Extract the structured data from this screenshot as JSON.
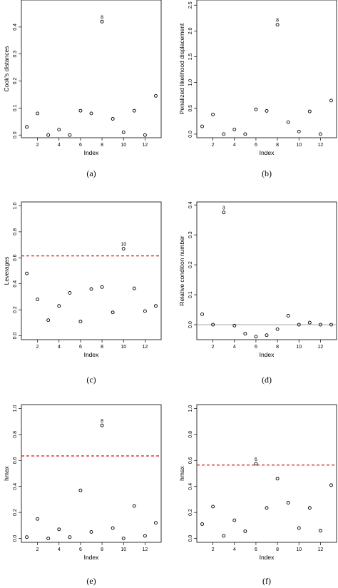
{
  "chart_data": [
    {
      "type": "scatter",
      "caption": "(a)",
      "xlabel": "Index",
      "ylabel": "Cook's distances",
      "x": [
        1,
        2,
        3,
        4,
        5,
        6,
        7,
        8,
        9,
        10,
        11,
        12,
        13
      ],
      "y": [
        0.03,
        0.08,
        0.0,
        0.02,
        0.0,
        0.09,
        0.08,
        0.42,
        0.06,
        0.01,
        0.09,
        0.0,
        0.145
      ],
      "xticks": [
        2,
        4,
        6,
        8,
        10,
        12
      ],
      "yticks": [
        0.0,
        0.1,
        0.2,
        0.3,
        0.4
      ],
      "ytick_labels": [
        "0.0",
        "0.1",
        "0.2",
        "0.3",
        "0.4"
      ],
      "xlim": [
        0.5,
        13.5
      ],
      "ylim": [
        -0.01,
        0.5
      ],
      "annotations": [
        {
          "index": 8,
          "label": "8"
        }
      ],
      "reference_line": null
    },
    {
      "type": "scatter",
      "caption": "(b)",
      "xlabel": "Index",
      "ylabel": "Penalized likelihood displacement",
      "x": [
        1,
        2,
        3,
        4,
        5,
        6,
        7,
        8,
        9,
        10,
        11,
        12,
        13
      ],
      "y": [
        0.15,
        0.38,
        0.0,
        0.09,
        0.0,
        0.48,
        0.45,
        2.12,
        0.23,
        0.05,
        0.44,
        0.0,
        0.65
      ],
      "xticks": [
        2,
        4,
        6,
        8,
        10,
        12
      ],
      "yticks": [
        0.0,
        0.5,
        1.0,
        1.5,
        2.0,
        2.5
      ],
      "ytick_labels": [
        "0.0",
        "0.5",
        "1.0",
        "1.5",
        "2.0",
        "2.5"
      ],
      "xlim": [
        0.5,
        13.5
      ],
      "ylim": [
        -0.07,
        2.6
      ],
      "annotations": [
        {
          "index": 8,
          "label": "8"
        }
      ],
      "reference_line": null
    },
    {
      "type": "scatter",
      "caption": "(c)",
      "xlabel": "Index",
      "ylabel": "Leverages",
      "x": [
        1,
        2,
        3,
        4,
        5,
        6,
        7,
        8,
        9,
        10,
        11,
        12,
        13
      ],
      "y": [
        0.48,
        0.28,
        0.12,
        0.23,
        0.33,
        0.11,
        0.36,
        0.375,
        0.18,
        0.67,
        0.365,
        0.19,
        0.23
      ],
      "xticks": [
        2,
        4,
        6,
        8,
        10,
        12
      ],
      "yticks": [
        0.0,
        0.2,
        0.4,
        0.6,
        0.8,
        1.0
      ],
      "ytick_labels": [
        "0.0",
        "0.2",
        "0.4",
        "0.6",
        "0.8",
        "1.0"
      ],
      "xlim": [
        0.5,
        13.5
      ],
      "ylim": [
        -0.03,
        1.03
      ],
      "annotations": [
        {
          "index": 10,
          "label": "10"
        }
      ],
      "reference_line": {
        "y": 0.615,
        "color": "#d62728",
        "style": "dashed"
      }
    },
    {
      "type": "scatter",
      "caption": "(d)",
      "xlabel": "Index",
      "ylabel": "Relative condition number",
      "x": [
        1,
        2,
        3,
        4,
        5,
        6,
        7,
        8,
        9,
        10,
        11,
        12,
        13
      ],
      "y": [
        0.035,
        0.0,
        0.375,
        -0.003,
        -0.03,
        -0.04,
        -0.035,
        -0.015,
        0.03,
        0.0,
        0.007,
        0.0,
        0.0
      ],
      "xticks": [
        2,
        4,
        6,
        8,
        10,
        12
      ],
      "yticks": [
        0.0,
        0.1,
        0.2,
        0.3,
        0.4
      ],
      "ytick_labels": [
        "0.0",
        "0.1",
        "0.2",
        "0.3",
        "0.4"
      ],
      "xlim": [
        0.5,
        13.5
      ],
      "ylim": [
        -0.05,
        0.41
      ],
      "annotations": [
        {
          "index": 3,
          "label": "3"
        }
      ],
      "reference_line": {
        "y": 0.0,
        "color": "#aaaaaa",
        "style": "solid"
      }
    },
    {
      "type": "scatter",
      "caption": "(e)",
      "xlabel": "Index",
      "ylabel": "hmax",
      "x": [
        1,
        2,
        3,
        4,
        5,
        6,
        7,
        8,
        9,
        10,
        11,
        12,
        13
      ],
      "y": [
        0.01,
        0.15,
        0.0,
        0.07,
        0.01,
        0.37,
        0.05,
        0.87,
        0.08,
        0.0,
        0.25,
        0.02,
        0.12
      ],
      "xticks": [
        2,
        4,
        6,
        8,
        10,
        12
      ],
      "yticks": [
        0.0,
        0.2,
        0.4,
        0.6,
        0.8,
        1.0
      ],
      "ytick_labels": [
        "0.0",
        "0.2",
        "0.4",
        "0.6",
        "0.8",
        "1.0"
      ],
      "xlim": [
        0.5,
        13.5
      ],
      "ylim": [
        -0.03,
        1.03
      ],
      "annotations": [
        {
          "index": 8,
          "label": "8"
        }
      ],
      "reference_line": {
        "y": 0.635,
        "color": "#d62728",
        "style": "dashed"
      }
    },
    {
      "type": "scatter",
      "caption": "(f)",
      "xlabel": "Index",
      "ylabel": "hmax",
      "x": [
        1,
        2,
        3,
        4,
        5,
        6,
        7,
        8,
        9,
        10,
        11,
        12,
        13
      ],
      "y": [
        0.11,
        0.245,
        0.02,
        0.14,
        0.055,
        0.575,
        0.235,
        0.46,
        0.275,
        0.08,
        0.235,
        0.06,
        0.41
      ],
      "xticks": [
        2,
        4,
        6,
        8,
        10,
        12
      ],
      "yticks": [
        0.0,
        0.2,
        0.4,
        0.6,
        0.8,
        1.0
      ],
      "ytick_labels": [
        "0.0",
        "0.2",
        "0.4",
        "0.6",
        "0.8",
        "1.0"
      ],
      "xlim": [
        0.5,
        13.5
      ],
      "ylim": [
        -0.03,
        1.03
      ],
      "annotations": [
        {
          "index": 6,
          "label": "6"
        }
      ],
      "reference_line": {
        "y": 0.565,
        "color": "#d62728",
        "style": "dashed"
      }
    }
  ]
}
